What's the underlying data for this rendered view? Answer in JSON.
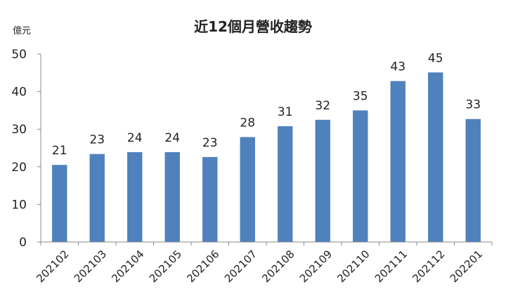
{
  "chart_data": {
    "type": "bar",
    "title": "近12個月營收趨勢",
    "ylabel": "億元",
    "xlabel": "",
    "categories": [
      "202102",
      "202103",
      "202104",
      "202105",
      "202106",
      "202107",
      "202108",
      "202109",
      "202110",
      "202111",
      "202112",
      "202201"
    ],
    "values": [
      20.5,
      23.4,
      23.9,
      23.9,
      22.6,
      27.9,
      30.8,
      32.5,
      35.0,
      42.8,
      45.1,
      32.7
    ],
    "data_labels": [
      "21",
      "23",
      "24",
      "24",
      "23",
      "28",
      "31",
      "32",
      "35",
      "43",
      "45",
      "33"
    ],
    "yticks": [
      "0",
      "10",
      "20",
      "30",
      "40",
      "50"
    ],
    "ylim": [
      0,
      50
    ],
    "grid": false,
    "legend": "none",
    "bar_color": "#4f81bd"
  }
}
